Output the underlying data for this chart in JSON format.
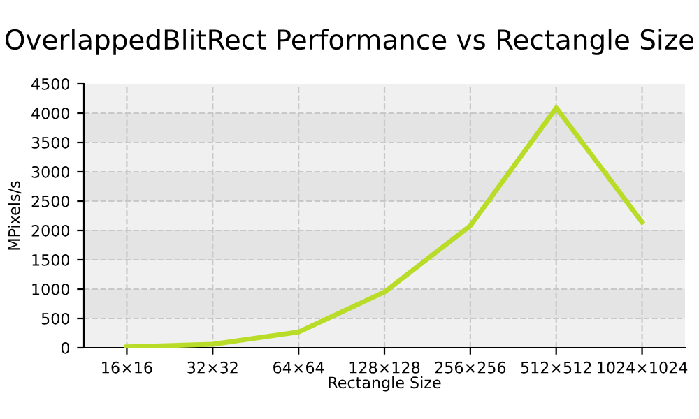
{
  "chart_data": {
    "type": "line",
    "title": "OverlappedBlitRect Performance vs Rectangle Size",
    "xlabel": "Rectangle Size",
    "ylabel": "MPixels/s",
    "categories": [
      "16×16",
      "32×32",
      "64×64",
      "128×128",
      "256×256",
      "512×512",
      "1024×1024"
    ],
    "series": [
      {
        "color": "#b8dc28",
        "values": [
          15,
          60,
          270,
          950,
          2080,
          4090,
          2140
        ]
      }
    ],
    "ylim": [
      0,
      4500
    ],
    "yticks": [
      0,
      500,
      1000,
      1500,
      2000,
      2500,
      3000,
      3500,
      4000,
      4500
    ],
    "grid": true,
    "marker": "none",
    "line_style": "solid"
  }
}
